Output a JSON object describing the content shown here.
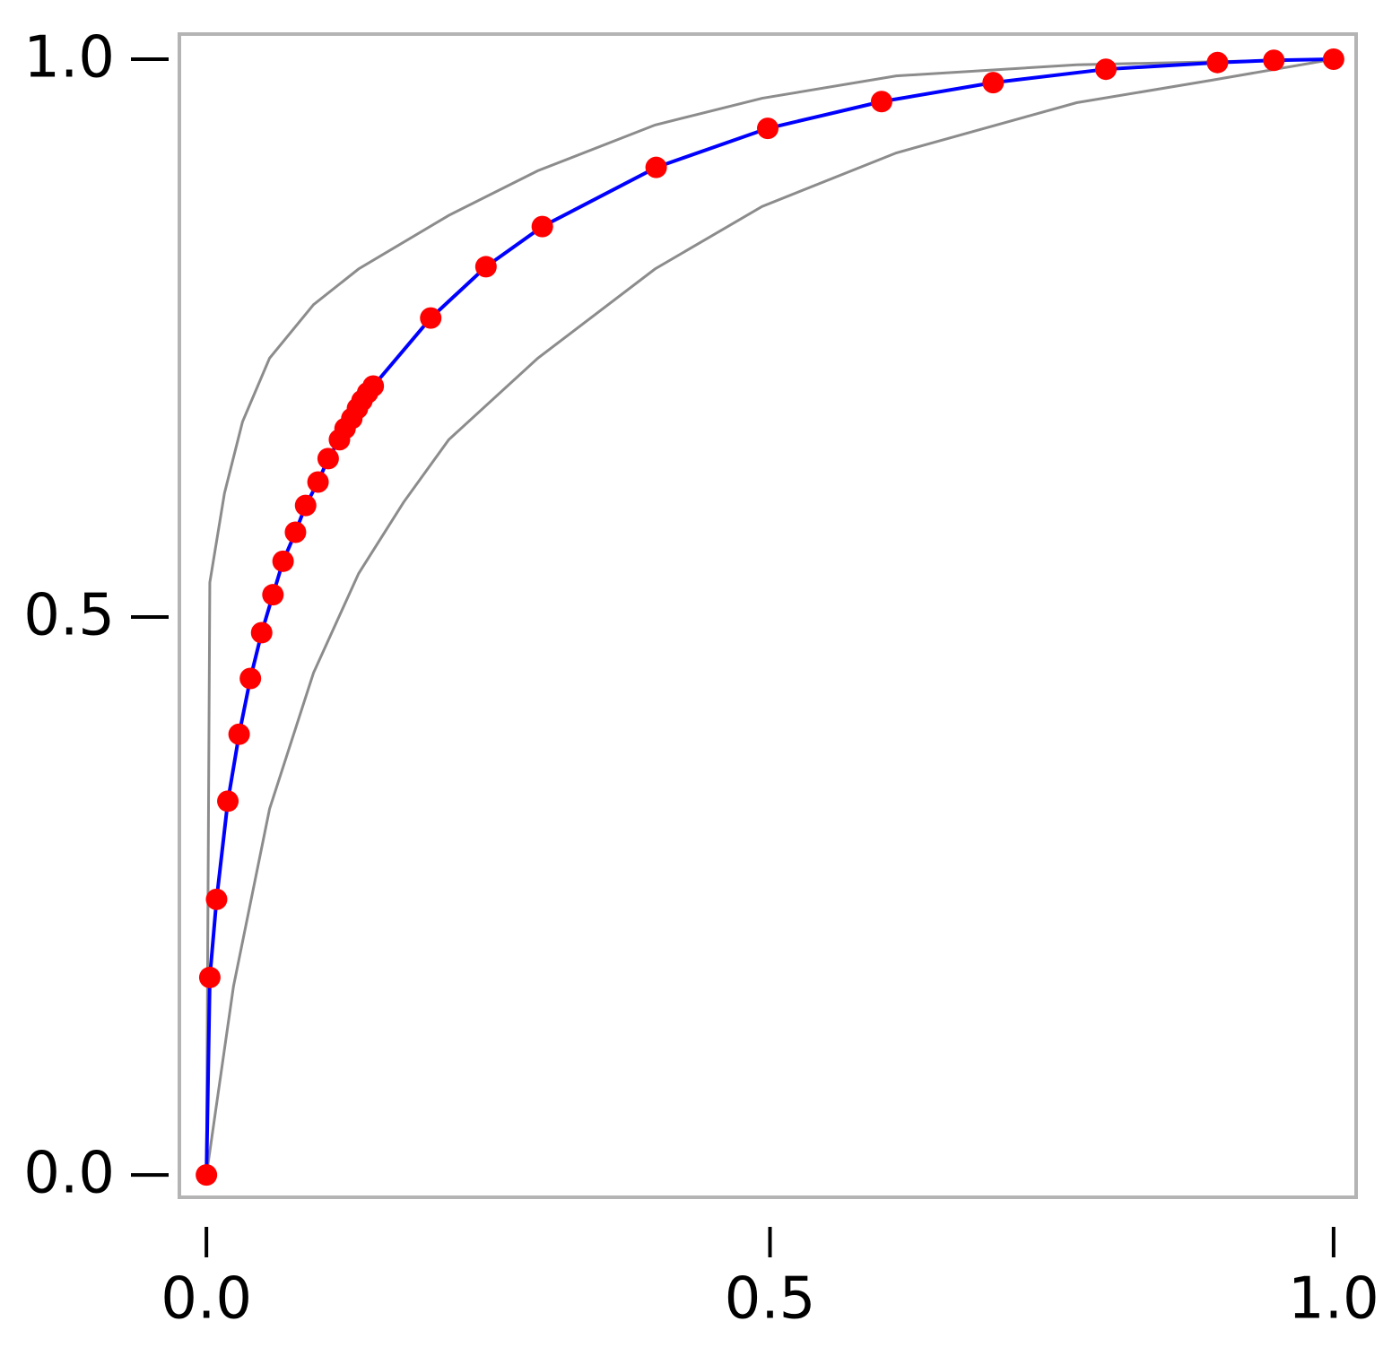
{
  "chart_data": {
    "type": "line",
    "xlim": [
      -0.024,
      1.02
    ],
    "ylim": [
      -0.02,
      1.0225
    ],
    "xticks": [
      {
        "value": 0,
        "label": "0.0"
      },
      {
        "value": 0.5,
        "label": "0.5"
      },
      {
        "value": 1,
        "label": "1.0"
      }
    ],
    "yticks": [
      {
        "value": 0,
        "label": "0.0"
      },
      {
        "value": 0.5,
        "label": "0.5"
      },
      {
        "value": 1,
        "label": "1.0"
      }
    ],
    "grid": false,
    "series": [
      {
        "color": "#8c8c8c",
        "x": [
          0,
          0.003,
          0.016,
          0.032,
          0.056,
          0.095,
          0.135,
          0.215,
          0.294,
          0.398,
          0.493,
          0.612,
          0.772,
          1
        ],
        "values": [
          0,
          0.531,
          0.611,
          0.675,
          0.732,
          0.78,
          0.812,
          0.86,
          0.9,
          0.941,
          0.965,
          0.985,
          0.995,
          1
        ]
      },
      {
        "color": "#8c8c8c",
        "x": [
          0,
          0.024,
          0.056,
          0.095,
          0.135,
          0.175,
          0.215,
          0.294,
          0.398,
          0.493,
          0.612,
          0.772,
          0.891,
          1
        ],
        "values": [
          0,
          0.169,
          0.328,
          0.45,
          0.539,
          0.603,
          0.659,
          0.732,
          0.812,
          0.868,
          0.916,
          0.961,
          0.981,
          1
        ]
      },
      {
        "color": "#0000ff",
        "marker_color": "#ff0000",
        "x": [
          0,
          0.003,
          0.009,
          0.019,
          0.029,
          0.039,
          0.049,
          0.059,
          0.068,
          0.079,
          0.088,
          0.099,
          0.108,
          0.118,
          0.123,
          0.129,
          0.134,
          0.138,
          0.143,
          0.148,
          0.199,
          0.248,
          0.298,
          0.399,
          0.498,
          0.599,
          0.698,
          0.798,
          0.897,
          0.947,
          1
        ],
        "values": [
          0,
          0.177,
          0.247,
          0.335,
          0.395,
          0.445,
          0.486,
          0.52,
          0.55,
          0.576,
          0.6,
          0.621,
          0.642,
          0.659,
          0.669,
          0.678,
          0.687,
          0.694,
          0.701,
          0.707,
          0.768,
          0.814,
          0.85,
          0.903,
          0.938,
          0.962,
          0.979,
          0.991,
          0.997,
          0.999,
          1
        ]
      }
    ]
  }
}
